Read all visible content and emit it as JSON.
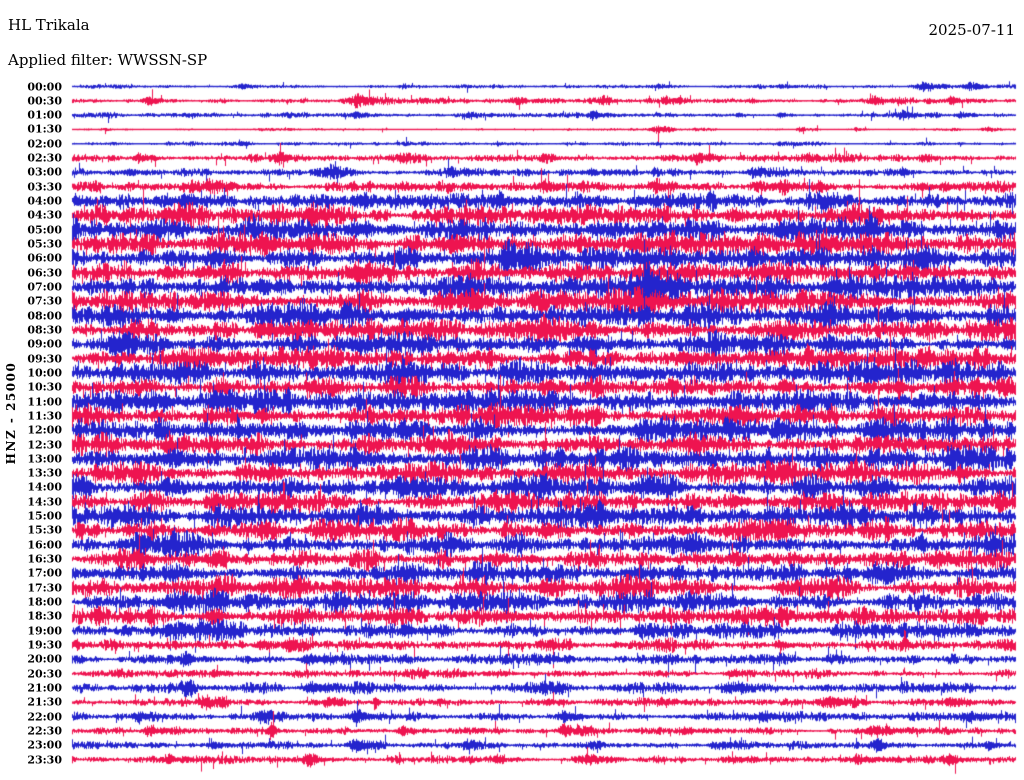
{
  "header": {
    "station": "HL Trikala",
    "filter_label": "Applied filter: WWSSN-SP",
    "date": "2025-07-11"
  },
  "chart_data": {
    "type": "line",
    "subtype": "helicorder-dayplot",
    "title": "HL Trikala",
    "filter_label": "Applied filter: WWSSN-SP",
    "date": "2025-07-11",
    "y_axis_label": "HNZ - 25000",
    "channel": "HNZ",
    "scale": 25000,
    "minutes_per_line": 30,
    "lines_per_day": 48,
    "grid": false,
    "legend": false,
    "background": "#ffffff",
    "text_color": "#000000",
    "palette": {
      "b": "#2424cd",
      "r": "#ee1450"
    },
    "amplitude_units": "relative trace half-height (px), estimated from image",
    "rows": [
      {
        "label": "00:00",
        "color": "b",
        "amp": 1.0,
        "bursts": [
          [
            0.18,
            2
          ],
          [
            0.35,
            2.5
          ],
          [
            0.62,
            2
          ],
          [
            0.75,
            3
          ],
          [
            0.9,
            5
          ],
          [
            0.95,
            3
          ]
        ]
      },
      {
        "label": "00:30",
        "color": "r",
        "amp": 1.4,
        "bursts": [
          [
            0.08,
            2.5
          ],
          [
            0.3,
            4.5
          ],
          [
            0.47,
            5
          ],
          [
            0.56,
            3
          ],
          [
            0.63,
            2.5
          ],
          [
            0.72,
            2
          ],
          [
            0.85,
            3
          ],
          [
            0.93,
            2.5
          ]
        ]
      },
      {
        "label": "01:00",
        "color": "b",
        "amp": 1.2,
        "bursts": [
          [
            0.12,
            2
          ],
          [
            0.3,
            3
          ],
          [
            0.42,
            2.5
          ],
          [
            0.55,
            3
          ],
          [
            0.75,
            2
          ],
          [
            0.88,
            4.5
          ],
          [
            0.94,
            3
          ]
        ]
      },
      {
        "label": "01:30",
        "color": "r",
        "amp": 0.7,
        "bursts": [
          [
            0.2,
            1.5
          ],
          [
            0.62,
            4.5
          ],
          [
            0.77,
            2.5
          ],
          [
            0.83,
            2
          ],
          [
            0.97,
            2
          ]
        ]
      },
      {
        "label": "02:00",
        "color": "b",
        "amp": 0.9,
        "bursts": [
          [
            0.18,
            1.8
          ],
          [
            0.45,
            1.5
          ],
          [
            0.62,
            1.5
          ],
          [
            0.75,
            1.8
          ]
        ]
      },
      {
        "label": "02:30",
        "color": "r",
        "amp": 1.8,
        "bursts": [
          [
            0.07,
            3.5
          ],
          [
            0.22,
            4.5
          ],
          [
            0.35,
            2.5
          ],
          [
            0.5,
            2.5
          ],
          [
            0.66,
            3
          ],
          [
            0.78,
            3
          ],
          [
            0.9,
            2.5
          ]
        ]
      },
      {
        "label": "03:00",
        "color": "b",
        "amp": 2.0,
        "bursts": [
          [
            0.06,
            2.5
          ],
          [
            0.27,
            4.5
          ],
          [
            0.4,
            2.5
          ],
          [
            0.55,
            3
          ],
          [
            0.72,
            3
          ],
          [
            0.88,
            2.5
          ]
        ]
      },
      {
        "label": "03:30",
        "color": "r",
        "amp": 2.8,
        "bursts": [
          [
            0.15,
            3.5
          ],
          [
            0.35,
            4
          ],
          [
            0.5,
            3.5
          ],
          [
            0.62,
            3
          ],
          [
            0.75,
            4
          ],
          [
            0.9,
            3.5
          ]
        ]
      },
      {
        "label": "04:00",
        "color": "b",
        "amp": 4.2,
        "bursts": [
          [
            0.12,
            5
          ],
          [
            0.3,
            6
          ],
          [
            0.45,
            4
          ],
          [
            0.6,
            4
          ],
          [
            0.8,
            5
          ]
        ]
      },
      {
        "label": "04:30",
        "color": "r",
        "amp": 4.8,
        "bursts": [
          [
            0.1,
            4
          ],
          [
            0.25,
            5
          ],
          [
            0.5,
            4
          ],
          [
            0.7,
            4
          ],
          [
            0.85,
            4
          ]
        ]
      },
      {
        "label": "05:00",
        "color": "b",
        "amp": 5.8,
        "bursts": [
          [
            0.08,
            5
          ],
          [
            0.3,
            6
          ],
          [
            0.55,
            4
          ],
          [
            0.75,
            5
          ]
        ]
      },
      {
        "label": "05:30",
        "color": "r",
        "amp": 5.2,
        "bursts": [
          [
            0.2,
            4
          ],
          [
            0.4,
            4
          ],
          [
            0.6,
            5
          ],
          [
            0.8,
            4
          ]
        ]
      },
      {
        "label": "06:00",
        "color": "b",
        "amp": 5.8,
        "bursts": [
          [
            0.15,
            5
          ],
          [
            0.35,
            4
          ],
          [
            0.46,
            7
          ],
          [
            0.72,
            4
          ],
          [
            0.9,
            5
          ]
        ]
      },
      {
        "label": "06:30",
        "color": "r",
        "amp": 5.2,
        "bursts": [
          [
            0.1,
            4
          ],
          [
            0.3,
            5
          ],
          [
            0.65,
            4
          ],
          [
            0.85,
            4
          ]
        ]
      },
      {
        "label": "07:00",
        "color": "b",
        "amp": 5.8,
        "bursts": [
          [
            0.2,
            4
          ],
          [
            0.42,
            4
          ],
          [
            0.607,
            24,
            10
          ],
          [
            0.8,
            4
          ]
        ]
      },
      {
        "label": "07:30",
        "color": "r",
        "amp": 5.2,
        "bursts": [
          [
            0.15,
            4
          ],
          [
            0.4,
            4
          ],
          [
            0.6,
            4
          ],
          [
            0.85,
            4
          ]
        ]
      },
      {
        "label": "08:00",
        "color": "b",
        "amp": 5.6,
        "bursts": [
          [
            0.1,
            4
          ],
          [
            0.35,
            5
          ],
          [
            0.6,
            4
          ],
          [
            0.8,
            4
          ]
        ]
      },
      {
        "label": "08:30",
        "color": "r",
        "amp": 5.0,
        "bursts": [
          [
            0.2,
            4
          ],
          [
            0.5,
            4
          ],
          [
            0.75,
            4
          ]
        ]
      },
      {
        "label": "09:00",
        "color": "b",
        "amp": 5.6,
        "bursts": [
          [
            0.05,
            5
          ],
          [
            0.3,
            4
          ],
          [
            0.55,
            4
          ],
          [
            0.8,
            4
          ]
        ]
      },
      {
        "label": "09:30",
        "color": "r",
        "amp": 5.0,
        "bursts": [
          [
            0.15,
            4
          ],
          [
            0.4,
            4
          ],
          [
            0.65,
            4
          ],
          [
            0.9,
            4
          ]
        ]
      },
      {
        "label": "10:00",
        "color": "b",
        "amp": 5.6,
        "bursts": [
          [
            0.1,
            4
          ],
          [
            0.35,
            4
          ],
          [
            0.6,
            4
          ],
          [
            0.85,
            5
          ]
        ]
      },
      {
        "label": "10:30",
        "color": "r",
        "amp": 5.0,
        "bursts": [
          [
            0.25,
            4
          ],
          [
            0.5,
            4
          ],
          [
            0.75,
            4
          ],
          [
            0.875,
            14,
            3
          ]
        ]
      },
      {
        "label": "11:00",
        "color": "b",
        "amp": 5.6,
        "bursts": [
          [
            0.1,
            5
          ],
          [
            0.4,
            4
          ],
          [
            0.65,
            4
          ],
          [
            0.9,
            4
          ]
        ]
      },
      {
        "label": "11:30",
        "color": "r",
        "amp": 5.0,
        "bursts": [
          [
            0.2,
            4
          ],
          [
            0.45,
            4
          ],
          [
            0.7,
            4
          ]
        ]
      },
      {
        "label": "12:00",
        "color": "b",
        "amp": 5.6,
        "bursts": [
          [
            0.09,
            12,
            6
          ],
          [
            0.175,
            18,
            2
          ],
          [
            0.35,
            4
          ],
          [
            0.6,
            4
          ],
          [
            0.85,
            4
          ]
        ]
      },
      {
        "label": "12:30",
        "color": "r",
        "amp": 5.0,
        "bursts": [
          [
            0.15,
            4
          ],
          [
            0.4,
            4
          ],
          [
            0.65,
            4
          ],
          [
            0.9,
            4
          ]
        ]
      },
      {
        "label": "13:00",
        "color": "b",
        "amp": 5.6,
        "bursts": [
          [
            0.1,
            4
          ],
          [
            0.3,
            5
          ],
          [
            0.55,
            4
          ],
          [
            0.8,
            4
          ]
        ]
      },
      {
        "label": "13:30",
        "color": "r",
        "amp": 5.0,
        "bursts": [
          [
            0.2,
            4
          ],
          [
            0.5,
            4
          ],
          [
            0.75,
            4
          ],
          [
            0.94,
            10,
            8
          ]
        ]
      },
      {
        "label": "14:00",
        "color": "b",
        "amp": 5.2,
        "bursts": [
          [
            0.1,
            4
          ],
          [
            0.35,
            4
          ],
          [
            0.6,
            4
          ],
          [
            0.85,
            4
          ]
        ]
      },
      {
        "label": "14:30",
        "color": "r",
        "amp": 4.8,
        "bursts": [
          [
            0.15,
            4
          ],
          [
            0.45,
            4
          ],
          [
            0.7,
            4
          ]
        ]
      },
      {
        "label": "15:00",
        "color": "b",
        "amp": 5.2,
        "bursts": [
          [
            0.05,
            4
          ],
          [
            0.3,
            4
          ],
          [
            0.55,
            4
          ],
          [
            0.8,
            4
          ]
        ]
      },
      {
        "label": "15:30",
        "color": "r",
        "amp": 4.8,
        "bursts": [
          [
            0.2,
            4
          ],
          [
            0.5,
            4
          ],
          [
            0.75,
            4
          ]
        ]
      },
      {
        "label": "16:00",
        "color": "b",
        "amp": 5.2,
        "bursts": [
          [
            0.1,
            4
          ],
          [
            0.4,
            4
          ],
          [
            0.65,
            4
          ],
          [
            0.9,
            4
          ]
        ]
      },
      {
        "label": "16:30",
        "color": "r",
        "amp": 4.8,
        "bursts": [
          [
            0.15,
            4
          ],
          [
            0.45,
            4
          ],
          [
            0.7,
            4
          ]
        ]
      },
      {
        "label": "17:00",
        "color": "b",
        "amp": 5.0,
        "bursts": [
          [
            0.1,
            4
          ],
          [
            0.35,
            4
          ],
          [
            0.6,
            4
          ],
          [
            0.85,
            4
          ]
        ]
      },
      {
        "label": "17:30",
        "color": "r",
        "amp": 4.6,
        "bursts": [
          [
            0.2,
            4
          ],
          [
            0.5,
            4
          ],
          [
            0.75,
            4
          ]
        ]
      },
      {
        "label": "18:00",
        "color": "b",
        "amp": 4.8,
        "bursts": [
          [
            0.1,
            4
          ],
          [
            0.4,
            4
          ],
          [
            0.7,
            4
          ]
        ]
      },
      {
        "label": "18:30",
        "color": "r",
        "amp": 4.4,
        "bursts": [
          [
            0.15,
            4
          ],
          [
            0.45,
            4
          ],
          [
            0.75,
            4
          ]
        ]
      },
      {
        "label": "19:00",
        "color": "b",
        "amp": 3.8,
        "bursts": [
          [
            0.1,
            4
          ],
          [
            0.35,
            4
          ],
          [
            0.6,
            4
          ],
          [
            0.85,
            4
          ]
        ]
      },
      {
        "label": "19:30",
        "color": "r",
        "amp": 2.8,
        "bursts": [
          [
            0.2,
            3
          ],
          [
            0.5,
            3
          ],
          [
            0.75,
            3
          ]
        ]
      },
      {
        "label": "20:00",
        "color": "b",
        "amp": 2.4,
        "bursts": [
          [
            0.12,
            4
          ],
          [
            0.25,
            4
          ],
          [
            0.5,
            3
          ],
          [
            0.8,
            3
          ]
        ]
      },
      {
        "label": "20:30",
        "color": "r",
        "amp": 2.2,
        "bursts": [
          [
            0.15,
            3
          ],
          [
            0.45,
            3
          ],
          [
            0.7,
            3
          ]
        ]
      },
      {
        "label": "21:00",
        "color": "b",
        "amp": 2.4,
        "bursts": [
          [
            0.12,
            4
          ],
          [
            0.25,
            5
          ],
          [
            0.5,
            4
          ],
          [
            0.7,
            4
          ],
          [
            0.9,
            3
          ]
        ]
      },
      {
        "label": "21:30",
        "color": "r",
        "amp": 2.2,
        "bursts": [
          [
            0.14,
            4
          ],
          [
            0.27,
            4
          ],
          [
            0.32,
            10,
            2
          ],
          [
            0.5,
            3
          ],
          [
            0.62,
            4
          ],
          [
            0.8,
            4
          ],
          [
            0.93,
            4
          ]
        ]
      },
      {
        "label": "22:00",
        "color": "b",
        "amp": 2.0,
        "bursts": [
          [
            0.07,
            4
          ],
          [
            0.2,
            5
          ],
          [
            0.3,
            6
          ],
          [
            0.52,
            5
          ],
          [
            0.73,
            3
          ],
          [
            0.95,
            6
          ]
        ]
      },
      {
        "label": "22:30",
        "color": "r",
        "amp": 1.9,
        "bursts": [
          [
            0.08,
            5
          ],
          [
            0.21,
            8,
            4
          ],
          [
            0.35,
            4
          ],
          [
            0.52,
            5
          ],
          [
            0.65,
            4
          ],
          [
            0.85,
            4
          ]
        ]
      },
      {
        "label": "23:00",
        "color": "b",
        "amp": 1.7,
        "bursts": [
          [
            0.15,
            3
          ],
          [
            0.3,
            5
          ],
          [
            0.42,
            4
          ],
          [
            0.55,
            3
          ],
          [
            0.68,
            4
          ],
          [
            0.85,
            4
          ],
          [
            0.97,
            4
          ]
        ]
      },
      {
        "label": "23:30",
        "color": "r",
        "amp": 1.9,
        "bursts": [
          [
            0.1,
            4
          ],
          [
            0.25,
            5
          ],
          [
            0.45,
            4
          ],
          [
            0.55,
            5
          ],
          [
            0.7,
            3
          ],
          [
            0.83,
            6
          ],
          [
            0.93,
            5
          ]
        ]
      }
    ]
  }
}
